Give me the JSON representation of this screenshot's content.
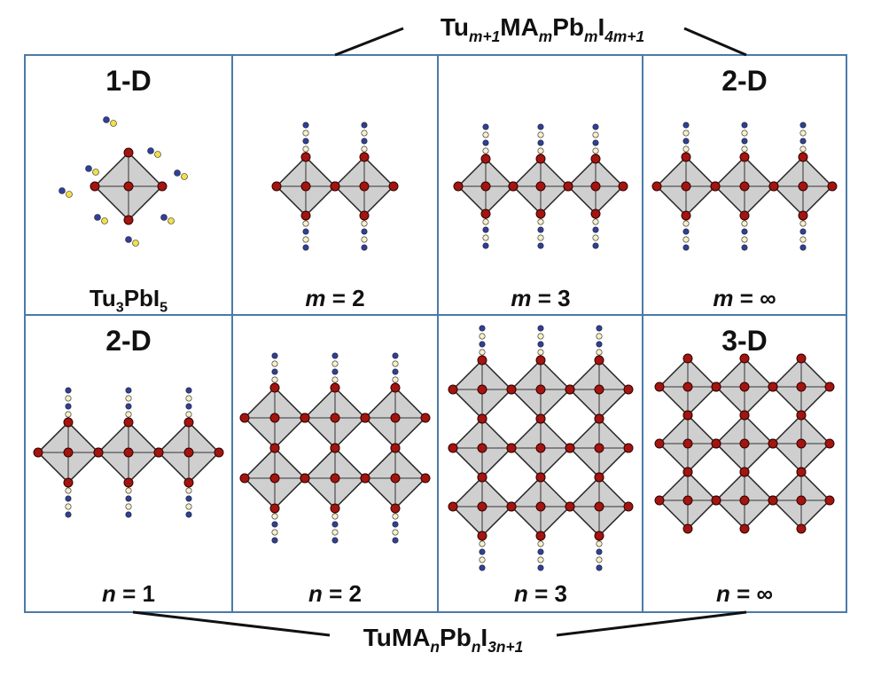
{
  "top_formula": {
    "parts": [
      "Tu",
      "m+1",
      "MA",
      "m",
      "Pb",
      "m",
      "I",
      "4m+1"
    ]
  },
  "bottom_formula": {
    "parts": [
      "TuMA",
      "n",
      "Pb",
      "n",
      "I",
      "3n+1"
    ]
  },
  "panels": [
    {
      "heading": "1-D",
      "label": [
        "Tu",
        "3",
        "PbI",
        "5"
      ]
    },
    {
      "label": [
        "m",
        " = 2"
      ]
    },
    {
      "label": [
        "m",
        " = 3"
      ]
    },
    {
      "heading": "2-D",
      "label": [
        "m",
        " = ∞"
      ]
    },
    {
      "heading": "2-D",
      "label": [
        "n",
        " = 1"
      ]
    },
    {
      "label": [
        "n",
        " = 2"
      ]
    },
    {
      "label": [
        "n",
        " = 3"
      ]
    },
    {
      "heading": "3-D",
      "label": [
        "n",
        " = ∞"
      ]
    }
  ]
}
